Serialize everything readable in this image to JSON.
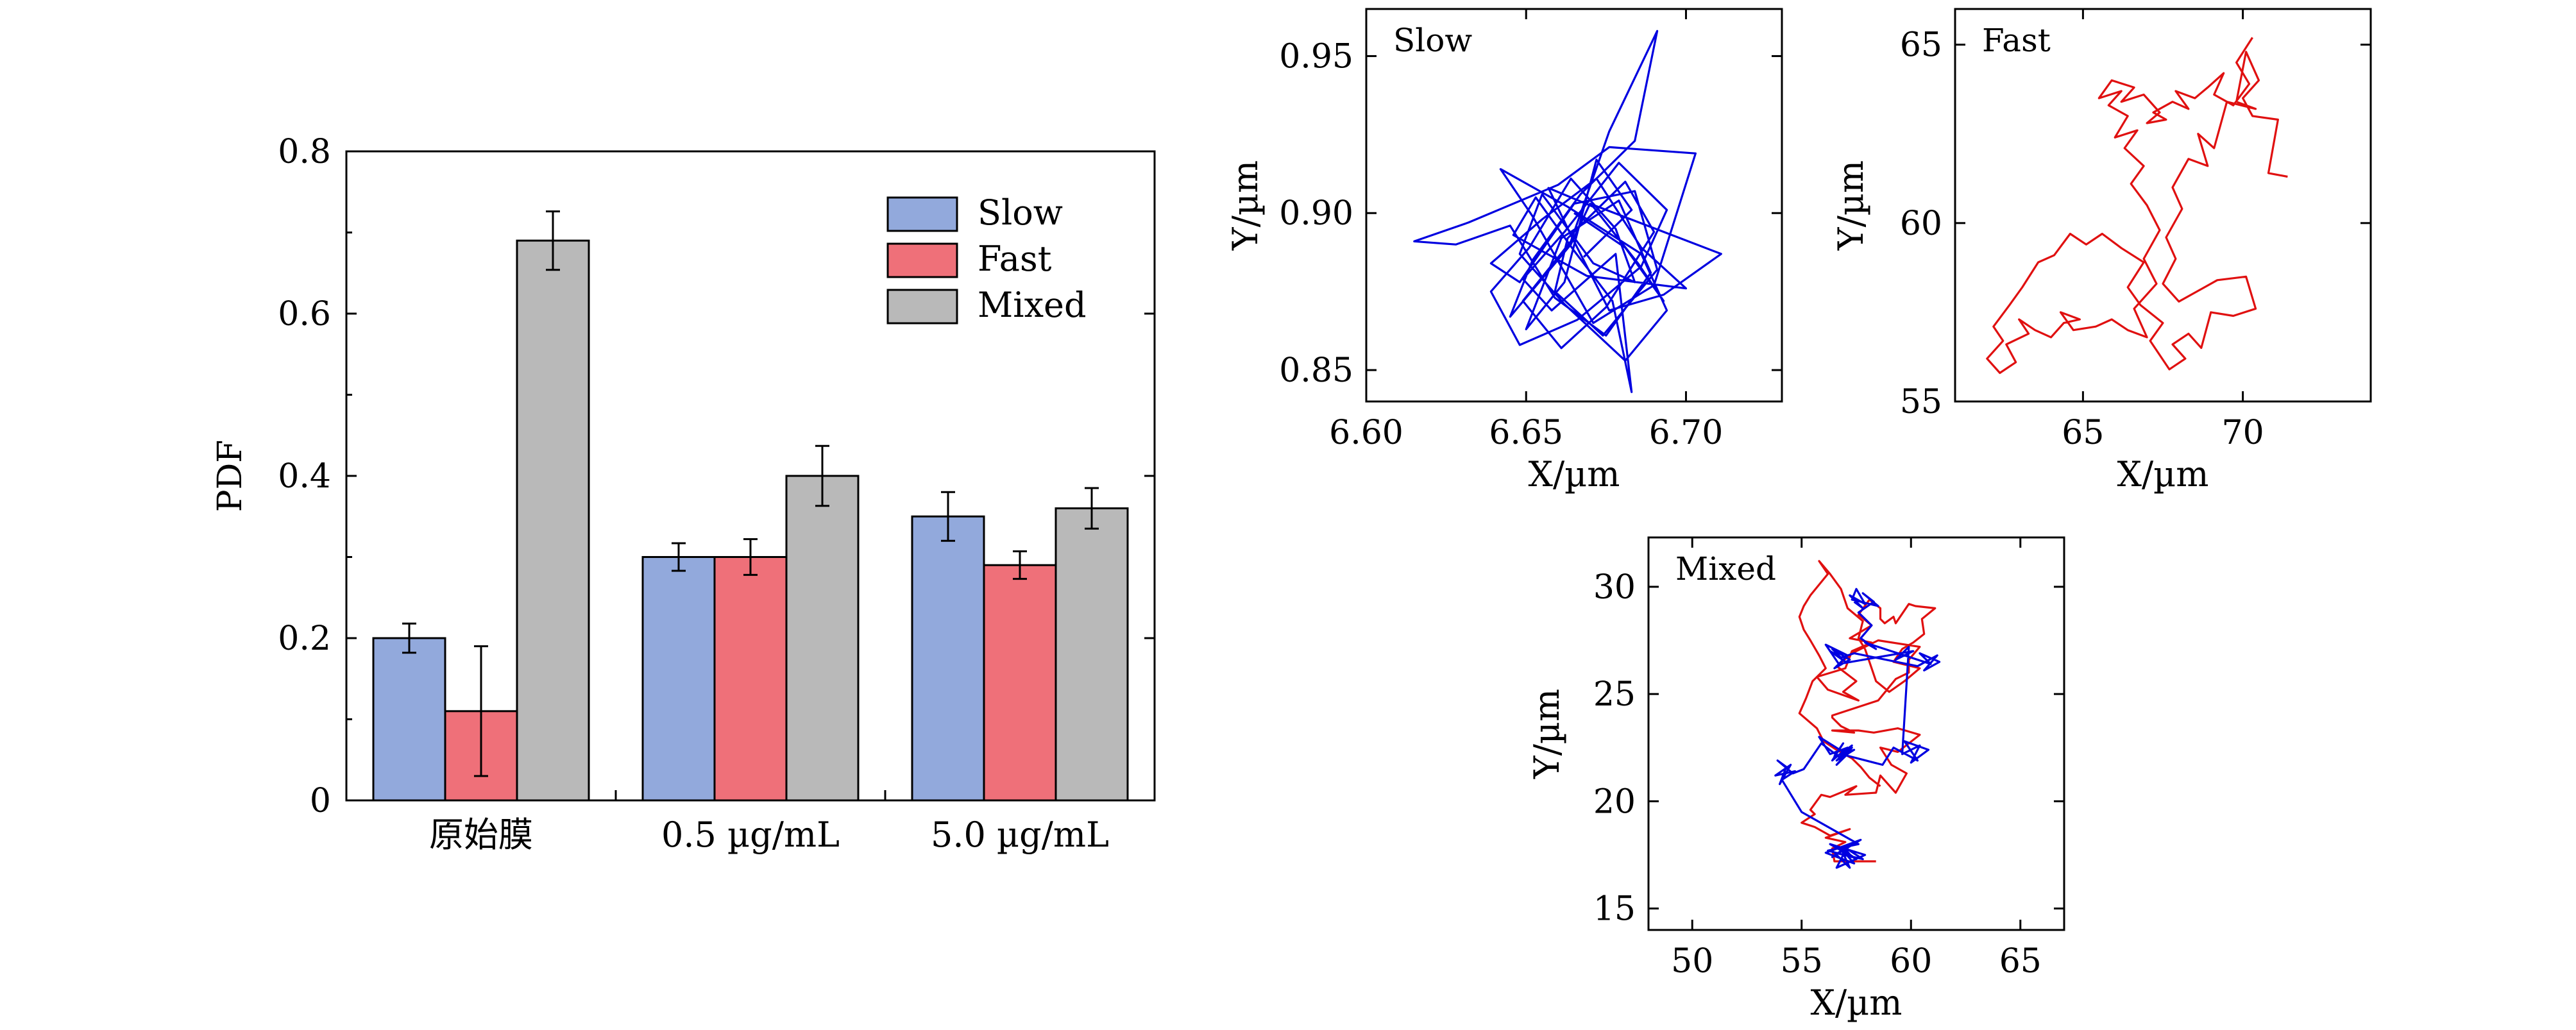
{
  "colors": {
    "slow": "#92a9dc",
    "fast": "#ef7079",
    "mixed": "#b9b9b9",
    "slow_line": "#0000e0",
    "fast_line": "#e01010",
    "axis": "#000000"
  },
  "chart_data": [
    {
      "type": "bar",
      "categories": [
        "原始膜",
        "0.5 µg/mL",
        "5.0 µg/mL"
      ],
      "series": [
        {
          "name": "Slow",
          "values": [
            0.2,
            0.3,
            0.35
          ],
          "errors": [
            0.018,
            0.017,
            0.03
          ],
          "color_key": "slow"
        },
        {
          "name": "Fast",
          "values": [
            0.11,
            0.3,
            0.29
          ],
          "errors": [
            0.08,
            0.022,
            0.017
          ],
          "color_key": "fast"
        },
        {
          "name": "Mixed",
          "values": [
            0.69,
            0.4,
            0.36
          ],
          "errors": [
            0.036,
            0.037,
            0.025
          ],
          "color_key": "mixed"
        }
      ],
      "xlabel": "",
      "ylabel": "PDF",
      "ylim": [
        0,
        0.8
      ],
      "yticks": [
        "0",
        "0.2",
        "0.4",
        "0.6",
        "0.8"
      ],
      "legend_position": "top-right",
      "grid": false
    },
    {
      "type": "line",
      "panel_label": "Slow",
      "xlabel": "X/µm",
      "ylabel": "Y/µm",
      "xlim": [
        6.6,
        6.73
      ],
      "ylim": [
        0.84,
        0.965
      ],
      "xticks": [
        6.6,
        6.65,
        6.7
      ],
      "xtick_labels": [
        "6.60",
        "6.65",
        "6.70"
      ],
      "yticks": [
        0.85,
        0.9,
        0.95
      ],
      "ytick_labels": [
        "0.85",
        "0.90",
        "0.95"
      ],
      "series": [
        {
          "color_key": "slow_line",
          "x": [
            6.668,
            6.683,
            6.672,
            6.662,
            6.65,
            6.661,
            6.679,
            6.689,
            6.675,
            6.659,
            6.645,
            6.628,
            6.615,
            6.632,
            6.66,
            6.676,
            6.703,
            6.69,
            6.671,
            6.652,
            6.642,
            6.663,
            6.686,
            6.694,
            6.681,
            6.662,
            6.648,
            6.655,
            6.671,
            6.684,
            6.678,
            6.664,
            6.651,
            6.639,
            6.648,
            6.666,
            6.686,
            6.694,
            6.679,
            6.662,
            6.649,
            6.658,
            6.678,
            6.683,
            6.677,
            6.665,
            6.653,
            6.646,
            6.669,
            6.7,
            6.686,
            6.672,
            6.655,
            6.639,
            6.648,
            6.665,
            6.684,
            6.691,
            6.674,
            6.659,
            6.663,
            6.681,
            6.69,
            6.675,
            6.661,
            6.649,
            6.664,
            6.676,
            6.691,
            6.684,
            6.667,
            6.652,
            6.645,
            6.664,
            6.67,
            6.711,
            6.693,
            6.676,
            6.664,
            6.657,
            6.671,
            6.685,
            6.693,
            6.681,
            6.665
          ],
          "y": [
            0.886,
            0.901,
            0.917,
            0.878,
            0.863,
            0.892,
            0.904,
            0.881,
            0.861,
            0.873,
            0.896,
            0.89,
            0.891,
            0.897,
            0.909,
            0.921,
            0.919,
            0.877,
            0.865,
            0.899,
            0.914,
            0.902,
            0.887,
            0.869,
            0.853,
            0.871,
            0.887,
            0.906,
            0.884,
            0.878,
            0.895,
            0.911,
            0.889,
            0.875,
            0.858,
            0.866,
            0.883,
            0.901,
            0.916,
            0.894,
            0.879,
            0.869,
            0.887,
            0.843,
            0.872,
            0.888,
            0.905,
            0.893,
            0.88,
            0.876,
            0.889,
            0.911,
            0.898,
            0.884,
            0.878,
            0.903,
            0.907,
            0.882,
            0.861,
            0.875,
            0.892,
            0.91,
            0.894,
            0.87,
            0.857,
            0.872,
            0.891,
            0.926,
            0.958,
            0.923,
            0.906,
            0.885,
            0.867,
            0.89,
            0.903,
            0.887,
            0.874,
            0.869,
            0.893,
            0.908,
            0.902,
            0.884,
            0.872,
            0.889,
            0.9
          ]
        }
      ],
      "grid": false
    },
    {
      "type": "line",
      "panel_label": "Fast",
      "xlabel": "X/µm",
      "ylabel": "Y/µm",
      "xlim": [
        61,
        74
      ],
      "ylim": [
        55,
        66
      ],
      "xticks": [
        65,
        70
      ],
      "xtick_labels": [
        "65",
        "70"
      ],
      "yticks": [
        55,
        60,
        65
      ],
      "ytick_labels": [
        "55",
        "60",
        "65"
      ],
      "series": [
        {
          "color_key": "fast_line",
          "x": [
            71.4,
            70.8,
            71.1,
            70.3,
            70.0,
            70.5,
            70.1,
            69.8,
            70.4,
            69.5,
            69.1,
            68.6,
            68.9,
            68.3,
            67.8,
            68.1,
            67.6,
            67.9,
            67.5,
            68.0,
            68.6,
            69.2,
            70.1,
            70.4,
            69.7,
            69.0,
            68.7,
            68.3,
            67.8,
            68.2,
            67.7,
            67.1,
            67.5,
            66.8,
            66.4,
            66.9,
            66.2,
            65.6,
            65.1,
            64.6,
            64.1,
            63.6,
            63.1,
            62.7,
            62.2,
            62.5,
            62.0,
            62.4,
            62.9,
            62.6,
            63.3,
            63.0,
            63.5,
            64.0,
            64.4,
            64.9,
            64.3,
            64.7,
            65.4,
            65.9,
            66.4,
            67.0,
            66.6,
            67.3,
            66.9,
            67.4,
            67.0,
            66.5,
            66.9,
            66.3,
            66.7,
            66.0,
            66.4,
            65.8,
            66.2,
            65.5,
            65.9,
            66.6,
            66.2,
            66.9,
            67.4,
            67.0,
            67.6,
            67.2,
            67.8,
            68.3,
            67.9,
            68.5,
            68.9,
            69.4,
            69.1,
            69.7,
            70.2,
            69.8,
            70.3
          ],
          "y": [
            61.3,
            61.4,
            62.9,
            63.0,
            63.5,
            64.0,
            64.8,
            63.4,
            63.2,
            63.4,
            62.1,
            62.5,
            61.6,
            61.8,
            61.0,
            60.4,
            59.6,
            59.0,
            58.3,
            57.8,
            58.1,
            58.4,
            58.5,
            57.6,
            57.4,
            57.5,
            56.5,
            56.9,
            56.6,
            56.2,
            55.9,
            56.7,
            57.2,
            57.7,
            58.2,
            58.9,
            59.3,
            59.7,
            59.4,
            59.7,
            59.1,
            58.9,
            58.2,
            57.7,
            57.1,
            56.7,
            56.2,
            55.8,
            56.1,
            56.6,
            56.9,
            57.3,
            57.0,
            56.8,
            57.2,
            57.3,
            57.5,
            57.0,
            57.1,
            57.3,
            57.0,
            56.8,
            57.6,
            58.3,
            59.0,
            59.8,
            60.5,
            61.1,
            61.6,
            62.1,
            62.6,
            62.4,
            63.0,
            63.3,
            63.7,
            63.5,
            64.0,
            63.8,
            63.4,
            63.6,
            63.1,
            62.8,
            62.9,
            63.1,
            63.4,
            63.2,
            63.7,
            63.5,
            63.8,
            64.2,
            63.6,
            63.3,
            63.9,
            64.5,
            65.2
          ]
        }
      ],
      "grid": false
    },
    {
      "type": "line",
      "panel_label": "Mixed",
      "xlabel": "X/µm",
      "ylabel": "Y/µm",
      "xlim": [
        48,
        67
      ],
      "ylim": [
        14,
        32.3
      ],
      "xticks": [
        50,
        55,
        60,
        65
      ],
      "xtick_labels": [
        "50",
        "55",
        "60",
        "65"
      ],
      "yticks": [
        15,
        20,
        25,
        30
      ],
      "ytick_labels": [
        "15",
        "20",
        "25",
        "30"
      ],
      "series": [
        {
          "color_key": "fast_line",
          "x": [
            58.4,
            56.5,
            56.4,
            57.0,
            56.1,
            57.2,
            56.3,
            55.6,
            55.0,
            55.6,
            55.4,
            55.9,
            56.3,
            57.5,
            57.0,
            58.4,
            58.6,
            59.3,
            59.8,
            59.1,
            58.6,
            59.4,
            60.4,
            59.4,
            58.3,
            57.6,
            56.4,
            57.4,
            56.8,
            56.4,
            56.4,
            58.5,
            59.3,
            59.9,
            59.9,
            60.4,
            58.5,
            57.3,
            56.6,
            57.5,
            56.9,
            57.6,
            56.2,
            55.7,
            57.0,
            57.3,
            58.2,
            57.2,
            58.2,
            57.6,
            58.1,
            58.6,
            58.6,
            58.8,
            59.2,
            59.3,
            59.9,
            60.2,
            61.1,
            60.5,
            60.6,
            60.1,
            59.6,
            59.2,
            60.4,
            59.7,
            59.0,
            58.4,
            58.2,
            57.9,
            57.6,
            57.8,
            57.1,
            56.8,
            56.3,
            55.8,
            56.2,
            55.8,
            55.4,
            55.1,
            54.9,
            55.1,
            55.4,
            55.8,
            56.1,
            55.5,
            55.2,
            54.9,
            55.7,
            56.0,
            56.6,
            57.3,
            57.7,
            58.1,
            58.6
          ],
          "y": [
            17.2,
            17.2,
            17.8,
            18.1,
            18.3,
            18.7,
            18.4,
            18.8,
            19.0,
            19.4,
            19.6,
            20.3,
            20.2,
            20.7,
            20.3,
            20.4,
            21.2,
            20.4,
            21.3,
            21.7,
            22.5,
            22.3,
            23.1,
            23.4,
            23.2,
            23.3,
            23.3,
            23.2,
            23.5,
            23.9,
            24.0,
            24.7,
            25.7,
            26.0,
            26.6,
            27.2,
            27.5,
            26.9,
            26.3,
            25.6,
            25.1,
            24.7,
            25.2,
            25.8,
            26.2,
            27.0,
            27.4,
            27.6,
            28.2,
            28.7,
            29.4,
            29.0,
            28.5,
            28.3,
            28.6,
            28.3,
            29.2,
            29.1,
            29.0,
            28.5,
            27.8,
            27.4,
            27.1,
            26.5,
            26.2,
            25.6,
            25.1,
            25.6,
            26.2,
            27.1,
            27.6,
            28.4,
            29.0,
            29.9,
            30.6,
            31.2,
            30.6,
            30.1,
            29.6,
            29.1,
            28.6,
            28.0,
            27.5,
            26.8,
            26.2,
            25.6,
            24.8,
            24.1,
            23.4,
            22.8,
            22.4,
            22.0,
            21.6,
            21.1,
            20.7
          ]
        },
        {
          "color_key": "slow_line",
          "x": [
            56.8,
            57.4,
            56.1,
            57.7,
            56.4,
            57.1,
            56.6,
            57.9,
            56.3,
            57.5,
            56.8,
            57.2,
            56.5,
            57.8,
            56.9,
            57.3,
            56.2,
            57.6,
            55.0,
            54.1,
            54.7,
            53.8,
            54.5,
            54.0,
            54.3,
            53.9,
            54.6,
            55.1,
            55.9,
            56.8,
            57.3,
            56.6,
            57.2,
            56.5,
            56.9,
            56.4,
            57.1,
            56.3,
            55.8,
            56.9,
            57.3,
            56.6,
            57.4,
            56.8,
            58.7,
            59.2,
            60.3,
            59.7,
            60.8,
            60.0,
            60.4,
            59.6,
            59.9,
            59.3,
            60.1,
            56.7,
            56.1,
            57.1,
            56.5,
            57.2,
            56.4,
            57.0,
            56.3,
            56.8,
            57.4,
            60.3,
            61.2,
            60.6,
            61.3,
            60.4,
            60.9,
            57.9,
            58.4,
            57.7,
            58.2,
            57.6,
            58.3,
            57.8,
            58.5,
            57.3,
            57.5,
            57.9,
            57.2,
            57.8,
            57.4
          ],
          "y": [
            17.8,
            17.1,
            17.6,
            18.2,
            17.4,
            17.9,
            16.9,
            17.5,
            18.0,
            17.3,
            17.8,
            16.9,
            17.6,
            17.3,
            17.9,
            17.4,
            17.7,
            18.0,
            19.5,
            21.0,
            21.4,
            21.2,
            21.7,
            20.8,
            21.6,
            21.9,
            21.3,
            21.5,
            22.7,
            22.0,
            22.5,
            21.7,
            22.3,
            22.1,
            22.7,
            21.9,
            22.5,
            22.2,
            23.0,
            22.3,
            22.6,
            21.9,
            22.4,
            22.2,
            21.7,
            22.5,
            21.9,
            22.8,
            22.4,
            21.8,
            22.6,
            22.2,
            27.2,
            26.6,
            27.0,
            26.4,
            27.3,
            26.8,
            26.2,
            26.6,
            27.1,
            26.5,
            27.0,
            26.7,
            26.9,
            26.3,
            26.8,
            26.1,
            26.5,
            26.9,
            26.4,
            27.4,
            27.1,
            27.6,
            28.2,
            28.8,
            29.3,
            29.7,
            29.1,
            29.4,
            29.9,
            29.2,
            29.6,
            29.0,
            29.3
          ]
        }
      ],
      "grid": false
    }
  ]
}
